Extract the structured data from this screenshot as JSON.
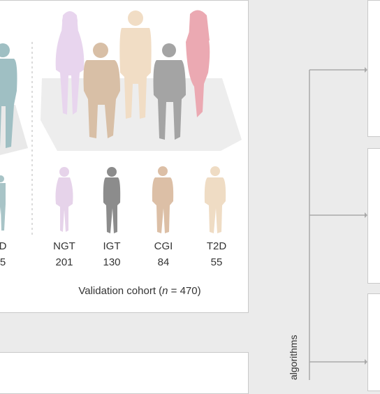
{
  "validation": {
    "groups": [
      {
        "label": "NGT",
        "count": "201",
        "color": "#e6d3ea"
      },
      {
        "label": "IGT",
        "count": "130",
        "color": "#8c8c8c"
      },
      {
        "label": "CGI",
        "count": "84",
        "color": "#dcbfa6"
      },
      {
        "label": "T2D",
        "count": "55",
        "color": "#efdcc4"
      }
    ],
    "left_cut": {
      "label": "D",
      "count": "5"
    },
    "caption_prefix": "Validation cohort (",
    "caption_n": "n",
    "caption_suffix": " = 470)"
  },
  "figure_colors": {
    "pink_woman": "#e8d5ee",
    "tan_man": "#d8bfa6",
    "beige_man": "#f1ddc5",
    "gray_man": "#a4a4a4",
    "red_woman": "#eba9b2",
    "teal_figure": "#9fbfc3",
    "flow_line": "#a9a9a9"
  },
  "side_label": "algorithms"
}
